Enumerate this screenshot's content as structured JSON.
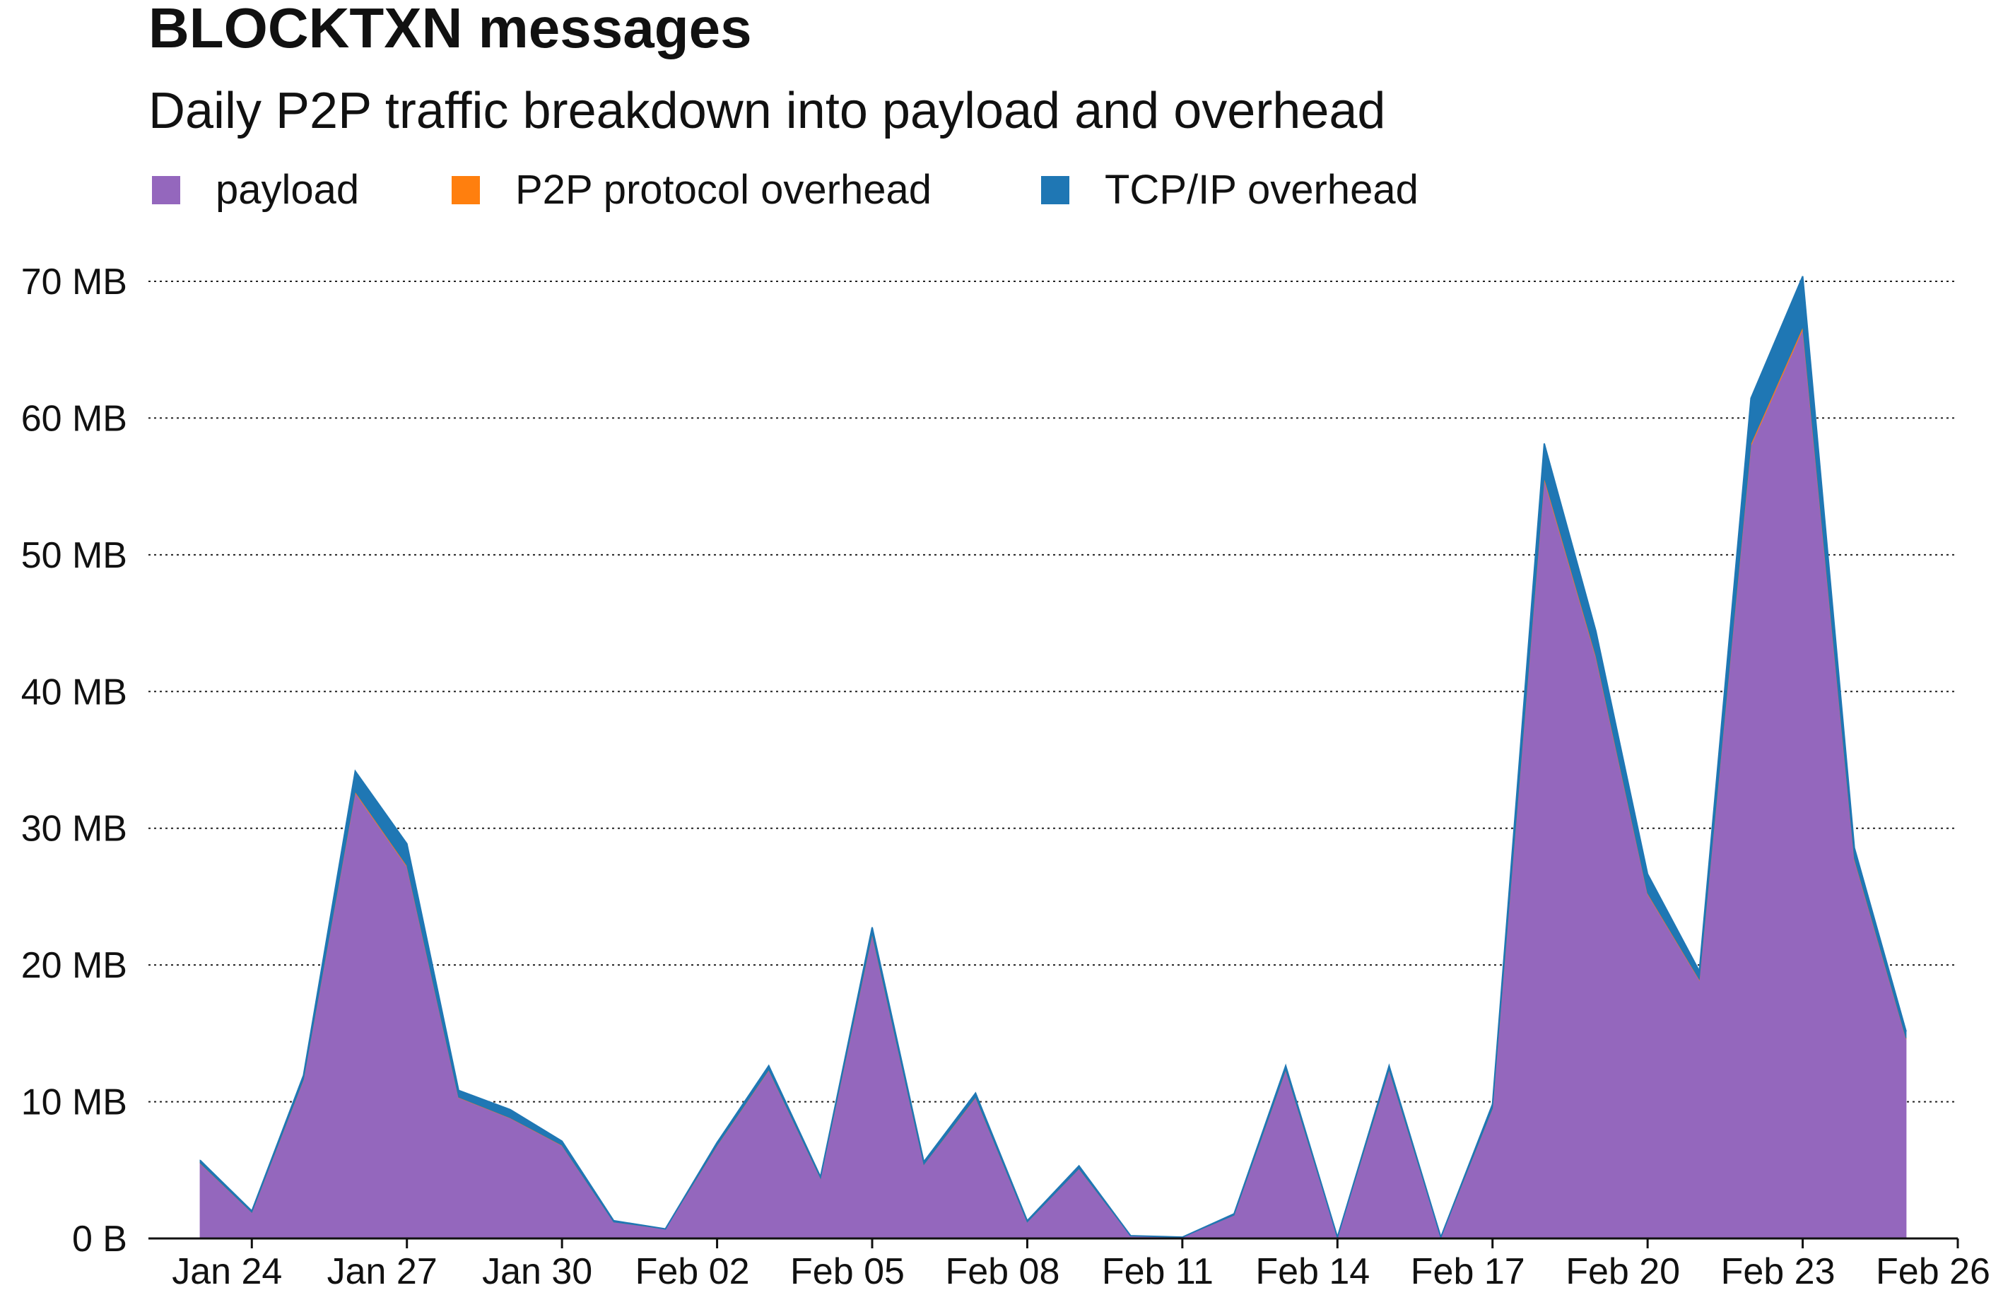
{
  "title": "BLOCKTXN messages",
  "subtitle": "Daily P2P traffic breakdown into payload and overhead",
  "colors": {
    "payload": "#9467bd",
    "p2p": "#ff7f0e",
    "tcpip": "#1f77b4"
  },
  "chart_data": {
    "type": "area",
    "stacked": true,
    "title": "BLOCKTXN messages",
    "subtitle": "Daily P2P traffic breakdown into payload and overhead",
    "xlabel": "",
    "ylabel": "",
    "legend_position": "top-left",
    "grid": "horizontal-dotted",
    "ylim": [
      0,
      70
    ],
    "y_unit": "MB",
    "y_ticks": [
      0,
      10,
      20,
      30,
      40,
      50,
      60,
      70
    ],
    "y_tick_labels": [
      "0 B",
      "10 MB",
      "20 MB",
      "30 MB",
      "40 MB",
      "50 MB",
      "60 MB",
      "70 MB"
    ],
    "x_range": [
      "2024-01-22",
      "2024-02-26"
    ],
    "x_ticks": [
      "2024-01-24",
      "2024-01-27",
      "2024-01-30",
      "2024-02-02",
      "2024-02-05",
      "2024-02-08",
      "2024-02-11",
      "2024-02-14",
      "2024-02-17",
      "2024-02-20",
      "2024-02-23",
      "2024-02-26"
    ],
    "x_tick_labels": [
      "Jan 24",
      "Jan 27",
      "Jan 30",
      "Feb 02",
      "Feb 05",
      "Feb 08",
      "Feb 11",
      "Feb 14",
      "Feb 17",
      "Feb 20",
      "Feb 23",
      "Feb 26"
    ],
    "x": [
      "2024-01-23",
      "2024-01-24",
      "2024-01-25",
      "2024-01-26",
      "2024-01-27",
      "2024-01-28",
      "2024-01-29",
      "2024-01-30",
      "2024-01-31",
      "2024-02-01",
      "2024-02-02",
      "2024-02-03",
      "2024-02-04",
      "2024-02-05",
      "2024-02-06",
      "2024-02-07",
      "2024-02-08",
      "2024-02-09",
      "2024-02-10",
      "2024-02-11",
      "2024-02-12",
      "2024-02-13",
      "2024-02-14",
      "2024-02-15",
      "2024-02-16",
      "2024-02-17",
      "2024-02-18",
      "2024-02-19",
      "2024-02-20",
      "2024-02-21",
      "2024-02-22",
      "2024-02-23",
      "2024-02-24",
      "2024-02-25"
    ],
    "series": [
      {
        "name": "payload",
        "values": [
          5.5,
          1.9,
          11.6,
          32.6,
          27.2,
          10.3,
          8.8,
          6.8,
          1.2,
          0.7,
          6.8,
          12.3,
          4.4,
          22.2,
          5.4,
          10.3,
          1.2,
          5.1,
          0.2,
          0.1,
          1.7,
          12.3,
          0.1,
          12.3,
          0.1,
          9.5,
          55.5,
          42.5,
          25.2,
          18.9,
          58.0,
          66.5,
          27.7,
          14.6
        ]
      },
      {
        "name": "P2P protocol overhead",
        "values": [
          0.02,
          0.01,
          0.03,
          0.08,
          0.07,
          0.03,
          0.02,
          0.02,
          0.0,
          0.0,
          0.02,
          0.03,
          0.01,
          0.06,
          0.01,
          0.03,
          0.0,
          0.01,
          0.0,
          0.0,
          0.0,
          0.03,
          0.0,
          0.03,
          0.0,
          0.02,
          0.14,
          0.11,
          0.06,
          0.05,
          0.15,
          0.17,
          0.07,
          0.04
        ]
      },
      {
        "name": "TCP/IP overhead",
        "values": [
          0.2,
          0.1,
          0.3,
          1.5,
          1.6,
          0.5,
          0.6,
          0.3,
          0.1,
          0.0,
          0.2,
          0.3,
          0.1,
          0.5,
          0.2,
          0.3,
          0.1,
          0.2,
          0.0,
          0.0,
          0.1,
          0.3,
          0.0,
          0.3,
          0.0,
          0.3,
          2.5,
          1.8,
          1.4,
          0.6,
          3.3,
          3.7,
          0.8,
          0.5
        ]
      }
    ]
  }
}
